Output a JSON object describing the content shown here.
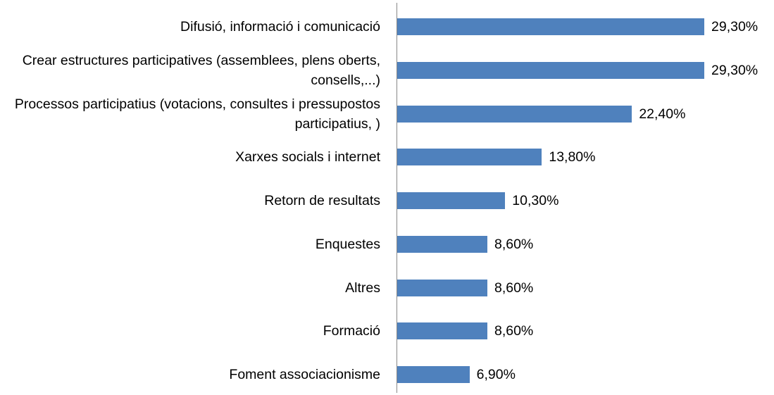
{
  "chart_data": {
    "type": "bar",
    "orientation": "horizontal",
    "color": "#4f81bd",
    "categories": [
      "Difusió, informació i comunicació",
      "Crear estructures participatives (assemblees, plens oberts, consells,...)",
      "Processos participatius (votacions, consultes i pressupostos participatius, )",
      "Xarxes socials i internet",
      "Retorn de resultats",
      "Enquestes",
      "Altres",
      "Formació",
      "Foment associacionisme"
    ],
    "values": [
      29.3,
      29.3,
      22.4,
      13.8,
      10.3,
      8.6,
      8.6,
      8.6,
      6.9
    ],
    "value_labels": [
      "29,30%",
      "29,30%",
      "22,40%",
      "13,80%",
      "10,30%",
      "8,60%",
      "8,60%",
      "8,60%",
      "6,90%"
    ]
  }
}
